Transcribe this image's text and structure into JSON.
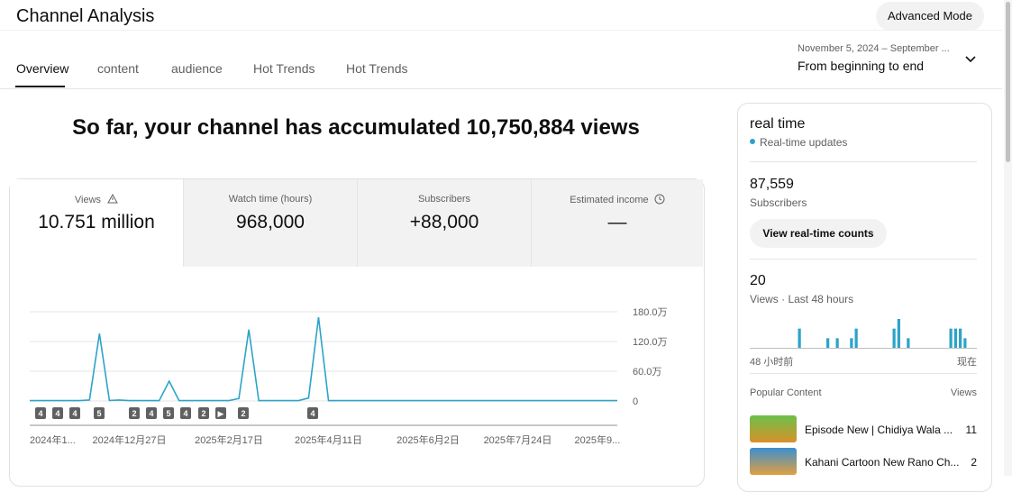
{
  "header": {
    "title": "Channel Analysis",
    "button": "Advanced Mode"
  },
  "tabs": [
    "Overview",
    "content",
    "audience",
    "Hot Trends",
    "Hot Trends"
  ],
  "date_range": {
    "range": "November 5, 2024 – September ...",
    "label": "From beginning to end"
  },
  "headline": "So far, your channel has accumulated 10,750,884 views",
  "metrics": [
    {
      "label": "Views",
      "value": "10.751 million"
    },
    {
      "label": "Watch time (hours)",
      "value": "968,000"
    },
    {
      "label": "Subscribers",
      "value": "+88,000"
    },
    {
      "label": "Estimated income",
      "value": "—"
    }
  ],
  "chart_data": [
    {
      "type": "line",
      "categories": [
        "2024年1...",
        null,
        null,
        null,
        null,
        null,
        null,
        null,
        null,
        null,
        "2024年12月27日",
        null,
        null,
        null,
        null,
        null,
        null,
        null,
        null,
        null,
        "2025年2月17日",
        null,
        null,
        null,
        null,
        null,
        null,
        null,
        null,
        null,
        "2025年4月11日",
        null,
        null,
        null,
        null,
        null,
        null,
        null,
        null,
        null,
        "2025年6月2日",
        null,
        null,
        null,
        null,
        null,
        null,
        null,
        null,
        "2025年7月24日",
        null,
        null,
        null,
        null,
        null,
        null,
        null,
        "2025年9...",
        null,
        null
      ],
      "series": [
        {
          "color": "#2ea3c8",
          "values": [
            8000,
            8000,
            8000,
            8000,
            8000,
            8000,
            20000,
            1360000,
            10000,
            20000,
            8000,
            8000,
            8000,
            8000,
            400000,
            8000,
            8000,
            8000,
            8000,
            8000,
            8000,
            50000,
            1440000,
            8000,
            8000,
            8000,
            8000,
            8000,
            60000,
            1690000,
            8000,
            8000,
            8000,
            8000,
            8000,
            8000,
            8000,
            8000,
            8000,
            8000,
            8000,
            8000,
            8000,
            8000,
            8000,
            8000,
            8000,
            8000,
            8000,
            8000,
            8000,
            8000,
            8000,
            8000,
            8000,
            8000,
            8000,
            8000,
            8000,
            8000
          ]
        }
      ],
      "ylim": [
        0,
        1800000
      ],
      "yticks": [
        0,
        {
          "value": 600000,
          "label": "60.0万"
        },
        {
          "value": 1200000,
          "label": "120.0万"
        },
        {
          "value": 1800000,
          "label": "180.0万"
        }
      ],
      "grid": true,
      "annotations": [
        "4",
        "4",
        "4",
        "5",
        "2",
        "4",
        "5",
        "4",
        "2",
        "▶",
        "2",
        "4"
      ]
    },
    {
      "type": "bar",
      "categories": [
        "48 小时前",
        null,
        null,
        null,
        null,
        null,
        null,
        null,
        null,
        null,
        null,
        null,
        null,
        null,
        null,
        null,
        null,
        null,
        null,
        null,
        null,
        null,
        null,
        null,
        null,
        null,
        null,
        null,
        null,
        null,
        null,
        null,
        null,
        null,
        null,
        null,
        null,
        null,
        null,
        null,
        null,
        null,
        null,
        null,
        null,
        null,
        null,
        "现在"
      ],
      "values": [
        0,
        0,
        0,
        0,
        0,
        0,
        0,
        0,
        0,
        0,
        2,
        0,
        0,
        0,
        0,
        0,
        1,
        0,
        1,
        0,
        0,
        1,
        2,
        0,
        0,
        0,
        0,
        0,
        0,
        0,
        2,
        3,
        0,
        1,
        0,
        0,
        0,
        0,
        0,
        0,
        0,
        0,
        2,
        2,
        2,
        1,
        0,
        0
      ],
      "color": "#2ea3c8",
      "ylim": [
        0,
        3
      ]
    }
  ],
  "realtime": {
    "title": "real time",
    "status": "Real-time updates",
    "subscribers": {
      "value": "87,559",
      "label": "Subscribers"
    },
    "button": "View real-time counts",
    "views": {
      "value": "20",
      "label": "Views · Last 48 hours"
    }
  },
  "popular": {
    "title": "Popular Content",
    "column": "Views",
    "rows": [
      {
        "title": "Episode New | Chidiya Wala ...",
        "views": "11"
      },
      {
        "title": "Kahani Cartoon New Rano Ch...",
        "views": "2"
      }
    ]
  }
}
